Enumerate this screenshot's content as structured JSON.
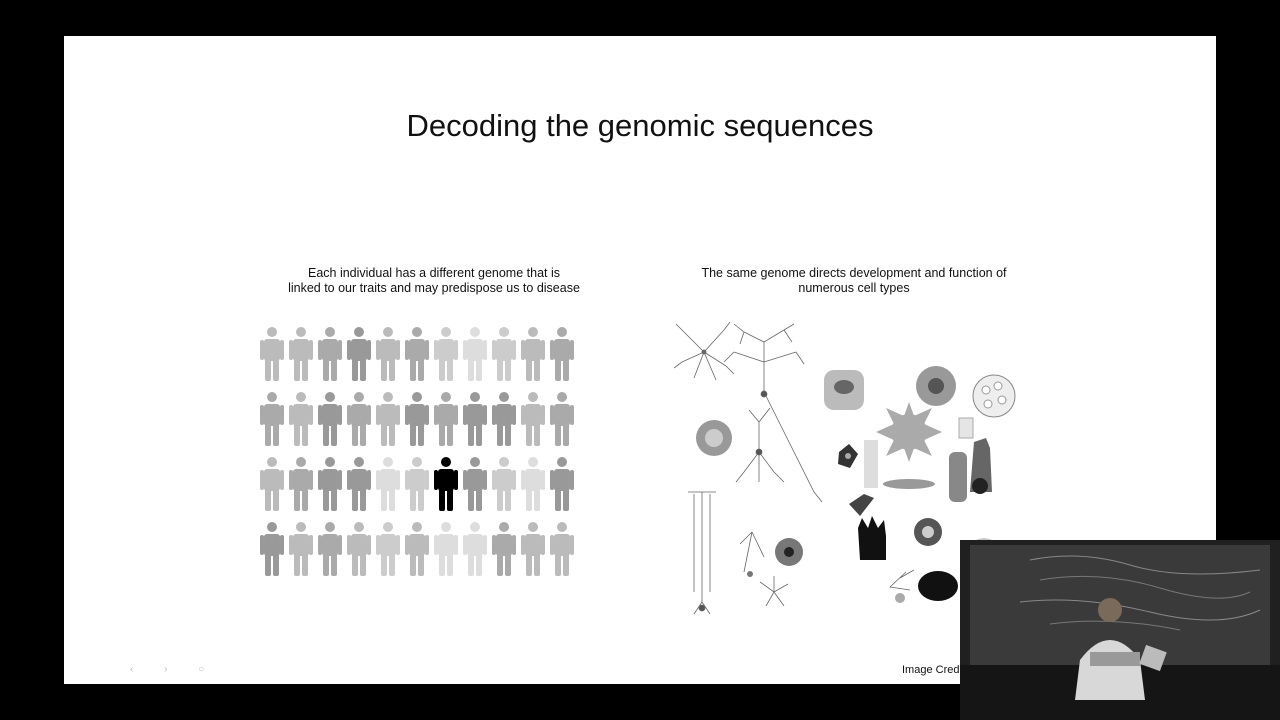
{
  "slide": {
    "title": "Decoding the genomic sequences",
    "left_caption_line1": "Each individual has a different genome that is",
    "left_caption_line2": "linked to our traits and may predispose us to disease",
    "right_caption_line1": "The same genome directs development and function of",
    "right_caption_line2": "numerous cell types",
    "credit": "Image Cred"
  },
  "colors": {
    "background": "#000000",
    "slide": "#ffffff",
    "person_highlight": "#000000"
  }
}
